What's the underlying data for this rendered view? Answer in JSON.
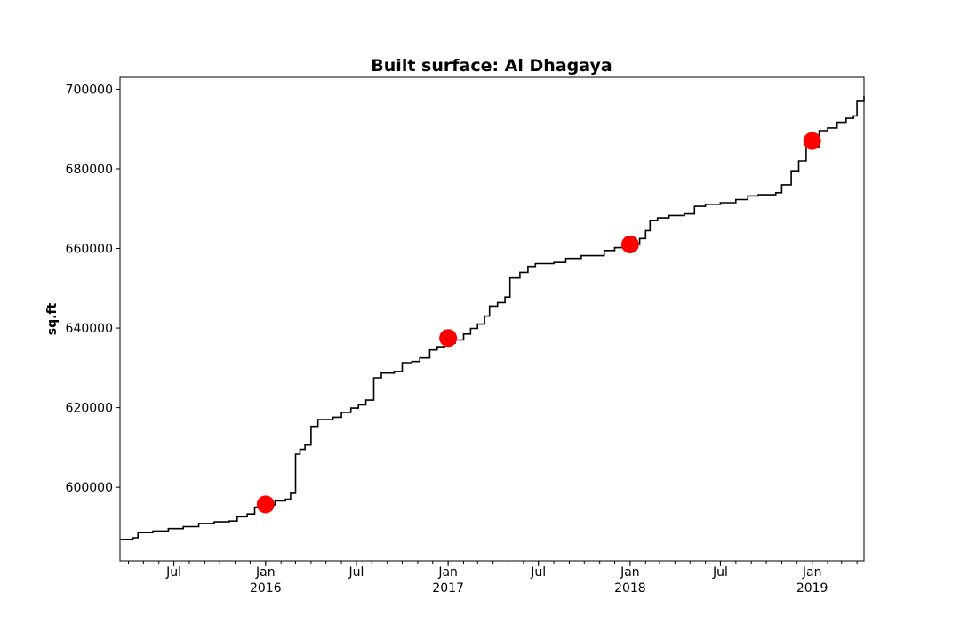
{
  "chart_data": {
    "type": "line",
    "title": "Built surface: Al Dhagaya",
    "xlabel": "",
    "ylabel": "sq.ft",
    "xlim": [
      "2015-03-15",
      "2019-04-15"
    ],
    "ylim": [
      581500,
      703000
    ],
    "grid": false,
    "y_ticks": [
      600000,
      620000,
      640000,
      660000,
      680000,
      700000
    ],
    "y_tick_labels": [
      "600000",
      "620000",
      "640000",
      "660000",
      "680000",
      "700000"
    ],
    "x_ticks": [
      {
        "date": "2015-07-01",
        "label": "Jul",
        "year": ""
      },
      {
        "date": "2016-01-01",
        "label": "Jan",
        "year": "2016"
      },
      {
        "date": "2016-07-01",
        "label": "Jul",
        "year": ""
      },
      {
        "date": "2017-01-01",
        "label": "Jan",
        "year": "2017"
      },
      {
        "date": "2017-07-01",
        "label": "Jul",
        "year": ""
      },
      {
        "date": "2018-01-01",
        "label": "Jan",
        "year": "2018"
      },
      {
        "date": "2018-07-01",
        "label": "Jul",
        "year": ""
      },
      {
        "date": "2019-01-01",
        "label": "Jan",
        "year": "2019"
      }
    ],
    "series": [
      {
        "name": "",
        "color": "#000000",
        "style": "step",
        "points": [
          [
            "2015-03-15",
            586900
          ],
          [
            "2015-04-10",
            587300
          ],
          [
            "2015-04-20",
            588600
          ],
          [
            "2015-05-20",
            589000
          ],
          [
            "2015-06-20",
            589600
          ],
          [
            "2015-07-20",
            590100
          ],
          [
            "2015-08-20",
            590900
          ],
          [
            "2015-09-20",
            591300
          ],
          [
            "2015-10-20",
            591500
          ],
          [
            "2015-11-05",
            592600
          ],
          [
            "2015-11-25",
            593300
          ],
          [
            "2015-12-10",
            595000
          ],
          [
            "2015-12-25",
            595600
          ],
          [
            "2016-01-20",
            596600
          ],
          [
            "2016-02-10",
            597000
          ],
          [
            "2016-02-20",
            598500
          ],
          [
            "2016-03-01",
            608300
          ],
          [
            "2016-03-10",
            609500
          ],
          [
            "2016-03-20",
            610600
          ],
          [
            "2016-04-01",
            615300
          ],
          [
            "2016-04-15",
            617000
          ],
          [
            "2016-05-15",
            617600
          ],
          [
            "2016-06-01",
            618800
          ],
          [
            "2016-06-20",
            619900
          ],
          [
            "2016-07-05",
            620700
          ],
          [
            "2016-07-20",
            621900
          ],
          [
            "2016-08-05",
            627500
          ],
          [
            "2016-08-20",
            628700
          ],
          [
            "2016-09-15",
            629100
          ],
          [
            "2016-10-01",
            631300
          ],
          [
            "2016-10-20",
            631600
          ],
          [
            "2016-11-05",
            632500
          ],
          [
            "2016-11-25",
            634500
          ],
          [
            "2016-12-10",
            635300
          ],
          [
            "2016-12-25",
            636200
          ],
          [
            "2017-01-15",
            637000
          ],
          [
            "2017-02-01",
            638500
          ],
          [
            "2017-02-15",
            639900
          ],
          [
            "2017-03-01",
            641000
          ],
          [
            "2017-03-15",
            643000
          ],
          [
            "2017-03-25",
            645500
          ],
          [
            "2017-04-10",
            646400
          ],
          [
            "2017-04-25",
            647800
          ],
          [
            "2017-05-05",
            652600
          ],
          [
            "2017-05-25",
            654000
          ],
          [
            "2017-06-10",
            655500
          ],
          [
            "2017-06-25",
            656200
          ],
          [
            "2017-08-01",
            656500
          ],
          [
            "2017-08-25",
            657500
          ],
          [
            "2017-09-25",
            658200
          ],
          [
            "2017-11-10",
            659500
          ],
          [
            "2017-12-01",
            660200
          ],
          [
            "2017-12-20",
            661000
          ],
          [
            "2018-01-20",
            662500
          ],
          [
            "2018-02-01",
            664500
          ],
          [
            "2018-02-10",
            667000
          ],
          [
            "2018-02-25",
            667700
          ],
          [
            "2018-03-20",
            668300
          ],
          [
            "2018-04-20",
            668700
          ],
          [
            "2018-05-10",
            670600
          ],
          [
            "2018-06-01",
            671100
          ],
          [
            "2018-07-01",
            671500
          ],
          [
            "2018-08-01",
            672300
          ],
          [
            "2018-08-25",
            673200
          ],
          [
            "2018-09-15",
            673500
          ],
          [
            "2018-10-20",
            674000
          ],
          [
            "2018-11-01",
            676000
          ],
          [
            "2018-11-20",
            679500
          ],
          [
            "2018-12-05",
            682000
          ],
          [
            "2018-12-20",
            685300
          ],
          [
            "2019-01-10",
            685500
          ],
          [
            "2019-01-15",
            689600
          ],
          [
            "2019-02-01",
            690300
          ],
          [
            "2019-02-20",
            691700
          ],
          [
            "2019-03-10",
            692700
          ],
          [
            "2019-03-25",
            693300
          ],
          [
            "2019-04-01",
            697000
          ],
          [
            "2019-04-15",
            698300
          ]
        ]
      },
      {
        "name": "",
        "color": "#ff0000",
        "style": "markers",
        "points": [
          [
            "2016-01-01",
            595700
          ],
          [
            "2017-01-01",
            637500
          ],
          [
            "2018-01-01",
            661000
          ],
          [
            "2019-01-01",
            687000
          ]
        ]
      }
    ]
  }
}
